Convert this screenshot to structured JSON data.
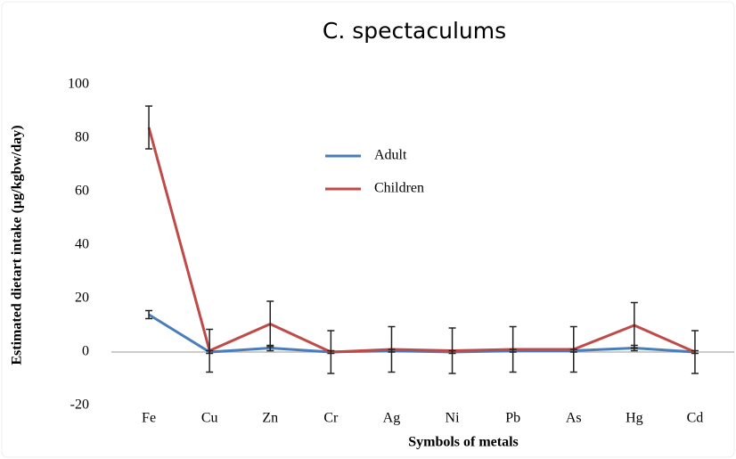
{
  "chart_data": {
    "type": "line",
    "title": "C. spectaculums",
    "x_label": "Symbols of metals",
    "y_label": "Estimated dietart intake (µg/kgbw/day)",
    "categories": [
      "Fe",
      "Cu",
      "Zn",
      "Cr",
      "Ag",
      "Ni",
      "Pb",
      "As",
      "Hg",
      "Cd"
    ],
    "series": [
      {
        "name": "Adult",
        "color": "#4a7ebb",
        "values": [
          14,
          0,
          1.5,
          0,
          0.5,
          0,
          0.5,
          0.5,
          1.5,
          0
        ],
        "errors": [
          1.5,
          0.5,
          1,
          0.5,
          0.5,
          0.5,
          0.5,
          0.5,
          1,
          0.5
        ]
      },
      {
        "name": "Children",
        "color": "#be4b48",
        "values": [
          84,
          0.5,
          10.5,
          0,
          1,
          0.5,
          1,
          1,
          10,
          0
        ],
        "errors": [
          8,
          8,
          8.5,
          8,
          8.5,
          8.5,
          8.5,
          8.5,
          8.5,
          8
        ]
      }
    ],
    "ylim": [
      -20,
      100
    ],
    "yticks": [
      -20,
      0,
      20,
      40,
      60,
      80,
      100
    ],
    "grid": false
  }
}
